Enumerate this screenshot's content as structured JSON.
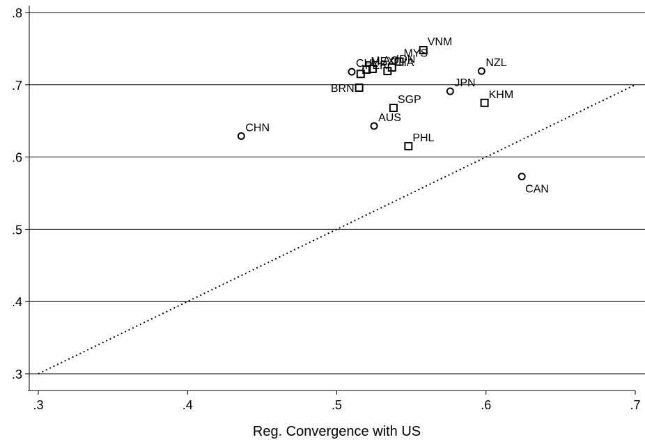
{
  "chart_data": {
    "type": "scatter",
    "xlabel": "Reg. Convergence with US",
    "ylabel": "",
    "xlim": [
      0.3,
      0.7
    ],
    "ylim": [
      0.3,
      0.8
    ],
    "x_ticks": [
      ".3",
      ".4",
      ".5",
      ".6",
      ".7"
    ],
    "y_ticks": [
      ".3",
      ".4",
      ".5",
      ".6",
      ".7",
      ".8"
    ],
    "grid": "horizontal",
    "reference_line": {
      "style": "dotted",
      "from": [
        0.3,
        0.3
      ],
      "to": [
        0.7,
        0.7
      ]
    },
    "series": [
      {
        "marker": "circle",
        "points": [
          {
            "label": "CHN",
            "x": 0.436,
            "y": 0.629
          },
          {
            "label": "AUS",
            "x": 0.525,
            "y": 0.643
          },
          {
            "label": "CHL",
            "x": 0.51,
            "y": 0.718
          },
          {
            "label": "JPN",
            "x": 0.576,
            "y": 0.691
          },
          {
            "label": "NZL",
            "x": 0.597,
            "y": 0.719
          },
          {
            "label": "CAN",
            "x": 0.624,
            "y": 0.573
          }
        ]
      },
      {
        "marker": "square",
        "points": [
          {
            "label": "BRN",
            "x": 0.515,
            "y": 0.696
          },
          {
            "label": "PER",
            "x": 0.516,
            "y": 0.715
          },
          {
            "label": "MEX",
            "x": 0.52,
            "y": 0.721
          },
          {
            "label": "LAO",
            "x": 0.524,
            "y": 0.722
          },
          {
            "label": "THA",
            "x": 0.534,
            "y": 0.719
          },
          {
            "label": "IDN",
            "x": 0.537,
            "y": 0.724
          },
          {
            "label": "MYS",
            "x": 0.542,
            "y": 0.732
          },
          {
            "label": "SGP",
            "x": 0.538,
            "y": 0.668
          },
          {
            "label": "VNM",
            "x": 0.558,
            "y": 0.748
          },
          {
            "label": "KHM",
            "x": 0.599,
            "y": 0.675
          },
          {
            "label": "PHL",
            "x": 0.548,
            "y": 0.615
          }
        ]
      }
    ]
  }
}
